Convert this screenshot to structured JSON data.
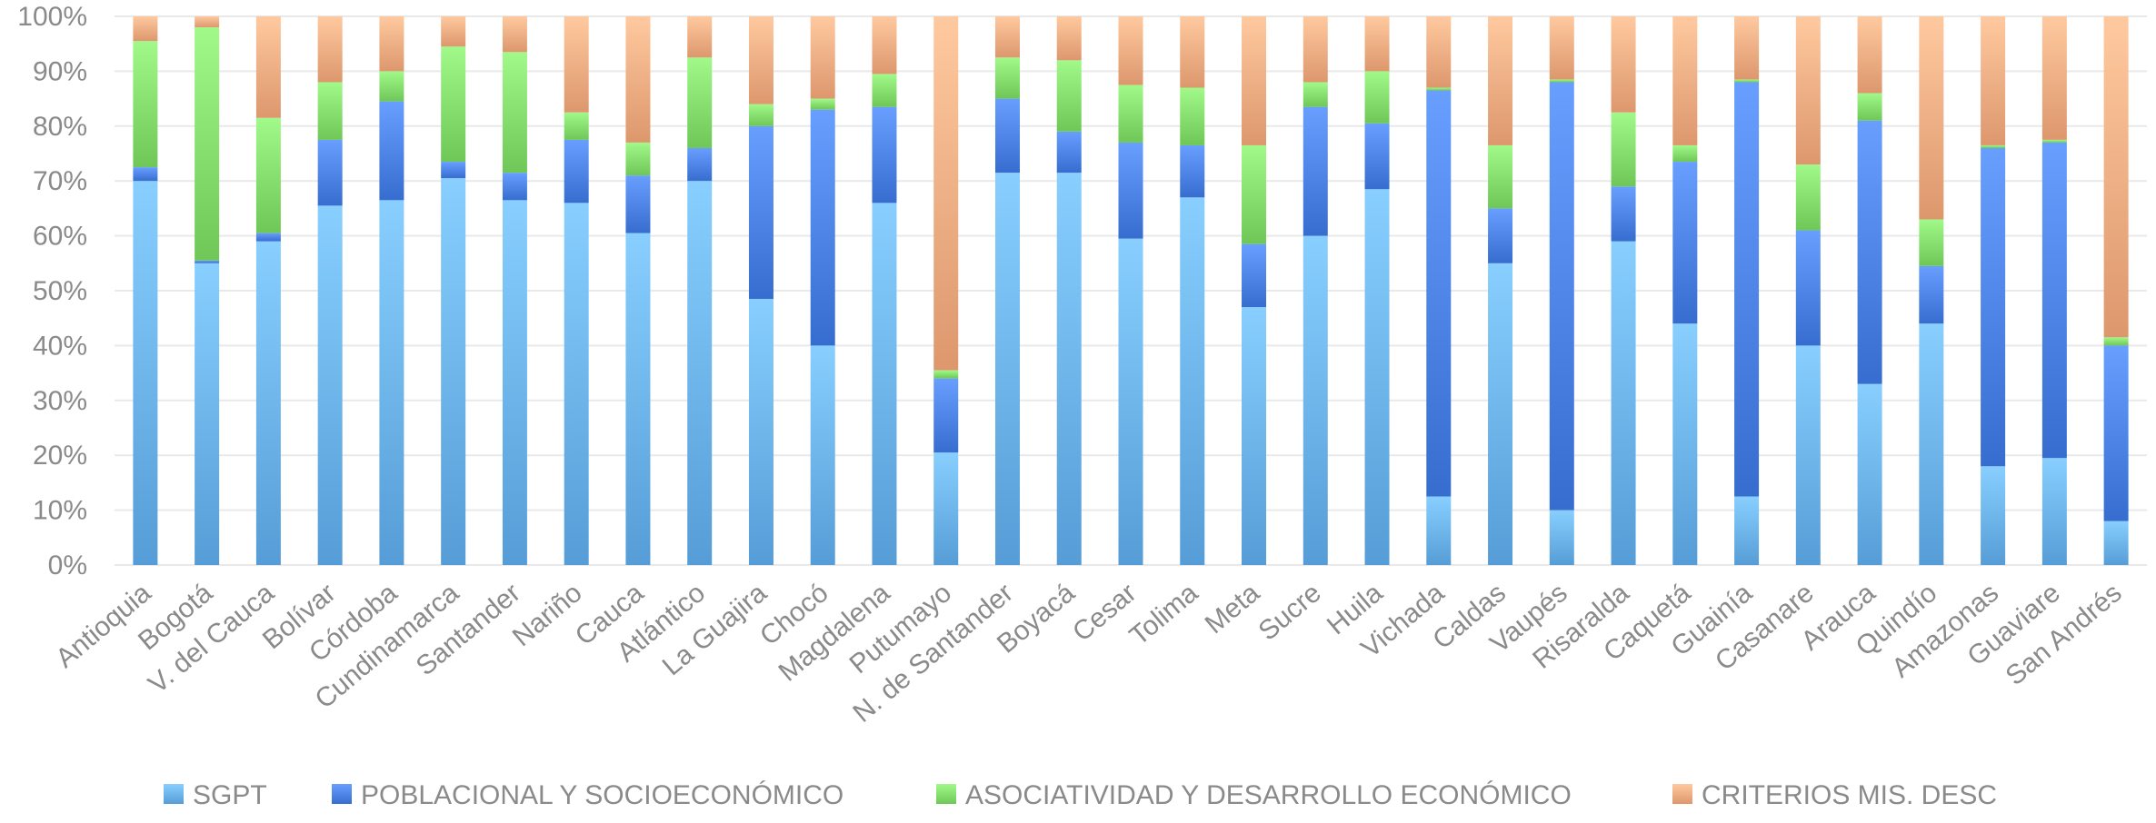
{
  "chart_data": {
    "type": "bar",
    "stacked": true,
    "percent": true,
    "ylim": [
      0,
      100
    ],
    "yticks": [
      0,
      10,
      20,
      30,
      40,
      50,
      60,
      70,
      80,
      90,
      100
    ],
    "ytick_suffix": "%",
    "grid": true,
    "legend_position": "bottom",
    "categories": [
      "Antioquia",
      "Bogotá",
      "V. del Cauca",
      "Bolívar",
      "Córdoba",
      "Cundinamarca",
      "Santander",
      "Nariño",
      "Cauca",
      "Atlántico",
      "La Guajira",
      "Chocó",
      "Magdalena",
      "Putumayo",
      "N. de Santander",
      "Boyacá",
      "Cesar",
      "Tolima",
      "Meta",
      "Sucre",
      "Huila",
      "Vichada",
      "Caldas",
      "Vaupés",
      "Risaralda",
      "Caquetá",
      "Guainía",
      "Casanare",
      "Arauca",
      "Quindío",
      "Amazonas",
      "Guaviare",
      "San Andrés"
    ],
    "series": [
      {
        "name": "SGPT",
        "color": "#6fb6f0",
        "values": [
          70,
          55,
          59,
          65.5,
          66.5,
          70.5,
          66.5,
          66,
          60.5,
          70,
          48.5,
          40,
          66,
          20.5,
          71.5,
          71.5,
          59.5,
          67,
          47,
          60,
          68.5,
          12.5,
          55,
          10,
          59,
          44,
          12.5,
          40,
          33,
          44,
          18,
          19.5,
          8
        ]
      },
      {
        "name": "POBLACIONAL Y SOCIOECONÓMICO",
        "color": "#4f86e8",
        "values": [
          2.5,
          0.5,
          1.5,
          12,
          18,
          3,
          5,
          11.5,
          10.5,
          6,
          31.5,
          43,
          17.5,
          13.5,
          13.5,
          7.5,
          17.5,
          9.5,
          11.5,
          23.5,
          12,
          74,
          10,
          78,
          10,
          29.5,
          75.5,
          21,
          48,
          10.5,
          58,
          57.5,
          32
        ]
      },
      {
        "name": "ASOCIATIVIDAD Y DESARROLLO ECONÓMICO",
        "color": "#88e070",
        "values": [
          23,
          42.5,
          21,
          10.5,
          5.5,
          21,
          22,
          5,
          6,
          16.5,
          4,
          2,
          6,
          1.5,
          7.5,
          13,
          10.5,
          10.5,
          18,
          4.5,
          9.5,
          0.5,
          11.5,
          0.5,
          13.5,
          3,
          0.5,
          12,
          5,
          8.5,
          0.5,
          0.5,
          1.5
        ]
      },
      {
        "name": "CRITERIOS MIS. DESC",
        "color": "#f6b086",
        "values": [
          4.5,
          2,
          18.5,
          12,
          10,
          5.5,
          6.5,
          17.5,
          23,
          7.5,
          16,
          15,
          10.5,
          64.5,
          7.5,
          8,
          12.5,
          13,
          23.5,
          12,
          10,
          13,
          23.5,
          11.5,
          17.5,
          23.5,
          11.5,
          27,
          14,
          37,
          23.5,
          22.5,
          58.5
        ]
      }
    ],
    "title": "",
    "xlabel": "",
    "ylabel": ""
  }
}
